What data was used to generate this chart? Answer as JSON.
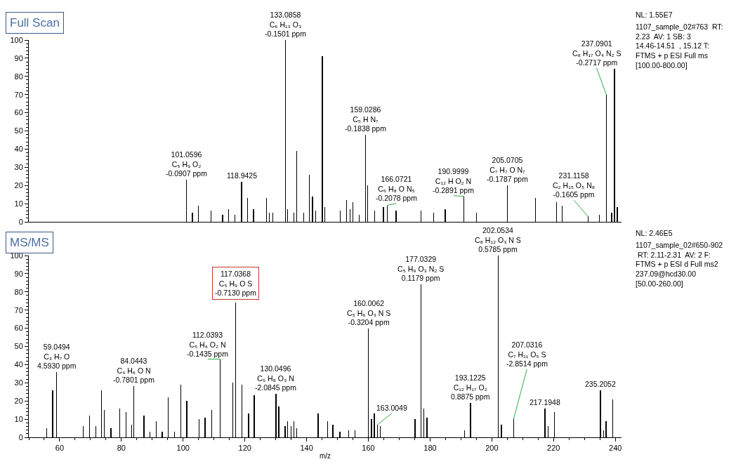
{
  "chart_data": [
    {
      "type": "bar",
      "title": "Full Scan",
      "color": "#000000",
      "x": [
        101.0596,
        103.0,
        104.9,
        109.0,
        112.8,
        114.7,
        116.8,
        118.9425,
        120.8,
        122.8,
        127.0,
        127.9,
        129.0,
        133.0858,
        133.9,
        135.8,
        136.8,
        139.0,
        140.9,
        141.9,
        143.0,
        145.1,
        145.9,
        150.9,
        153.0,
        154.0,
        155.0,
        157.0,
        159.0286,
        159.8,
        162.1,
        164.9,
        166.0721,
        169.0,
        177.0,
        181.1,
        184.9,
        190.9999,
        195.0,
        205.0705,
        214.1,
        221.0,
        222.8,
        231.1158,
        234.9,
        237.0901,
        238.8,
        239.7,
        240.6
      ],
      "values": [
        23,
        5,
        9,
        6,
        4,
        7,
        4,
        22,
        13,
        7,
        13,
        5,
        5,
        100,
        7,
        5,
        39,
        5,
        26,
        14,
        6,
        91,
        8,
        6,
        12,
        7,
        11,
        4,
        48,
        20,
        6,
        8,
        9,
        6,
        6,
        5,
        7,
        14,
        5,
        20,
        13,
        11,
        9,
        3,
        4,
        70,
        5,
        84,
        8
      ],
      "xlim": [
        50,
        242
      ],
      "xticks": [
        60,
        80,
        100,
        120,
        140,
        160,
        180,
        200,
        220,
        240
      ],
      "ylim": [
        0,
        100
      ],
      "yticks": [
        0,
        10,
        20,
        30,
        40,
        50,
        60,
        70,
        80,
        90,
        100
      ],
      "tick_labels": "y",
      "annotations": [
        {
          "text": "101.0596\nC₅ H₉ O₂\n-0.0907 ppm",
          "x": 101.0596,
          "y": 23
        },
        {
          "text": "118.9425",
          "x": 118.9425,
          "y": 22
        },
        {
          "text": "133.0858\nC₆ H₁₃ O₃\n-0.1501 ppm",
          "x": 133.0858,
          "y": 100
        },
        {
          "text": "159.0286\nC₅ H N₇\n-0.1838 ppm",
          "x": 159.0286,
          "y": 48
        },
        {
          "text": "166.0721\nC₆ H₈ O N₅\n-0.2078 ppm",
          "x": 166.0721,
          "y": 9
        },
        {
          "text": "190.9999\nC₁₂ H O₂ N\n-0.2891 ppm",
          "x": 190.9999,
          "y": 14
        },
        {
          "text": "205.0705\nC₇ H₇ O N₇\n-0.1787 ppm",
          "x": 205.0705,
          "y": 20
        },
        {
          "text": "231.1158\nC₂ H₁₅ O₅ N₈\n-0.1605 ppm",
          "x": 231.1158,
          "y": 3
        },
        {
          "text": "237.0901\nC₈ H₁₇ O₄ N₂ S\n-0.2717 ppm",
          "x": 237.0901,
          "y": 70
        },
        "NL: 1.55E7",
        "1107_sample_02#763  RT:\n2.23  AV: 1 SB: 3\n14.46-14.51  , 15.12 T:\nFTMS + p ESI Full ms\n[100.00-800.00]"
      ]
    },
    {
      "type": "bar",
      "title": "MS/MS",
      "xlabel": "m/z",
      "color": "#000000",
      "x": [
        55.8,
        57.7,
        59.0494,
        67.6,
        69.6,
        71.7,
        73.6,
        74.5,
        76.6,
        79.5,
        81.5,
        83.4,
        84.0443,
        87.3,
        89.3,
        91.3,
        93.2,
        95.2,
        97.2,
        99.2,
        101.2,
        105.1,
        107.1,
        109.3,
        112.0393,
        116.1,
        117.0368,
        119.0,
        121.2,
        123.0,
        130.0496,
        131.0,
        133.0,
        133.9,
        135.0,
        135.8,
        136.8,
        143.7,
        146.8,
        148.5,
        150.8,
        153.6,
        155.6,
        160.0062,
        161.0,
        161.9,
        163.0049,
        163.8,
        175.1,
        177.0329,
        177.9,
        179.0,
        191.1,
        193.1225,
        202.0534,
        203.1,
        207.0316,
        217.1948,
        218.2,
        220.2,
        235.2052,
        236.2,
        237.0,
        239.2
      ],
      "values": [
        5,
        26,
        36,
        6,
        12,
        6,
        26,
        15,
        5,
        16,
        14,
        7,
        28,
        12,
        3,
        9,
        3,
        22,
        3,
        29,
        20,
        10,
        11,
        15,
        43,
        30,
        74,
        29,
        13,
        23,
        24,
        17,
        6,
        9,
        6,
        9,
        5,
        13,
        9,
        7,
        3,
        4,
        4,
        60,
        10,
        13,
        7,
        6,
        10,
        84,
        16,
        11,
        4,
        19,
        100,
        7,
        10,
        16,
        6,
        14,
        26,
        4,
        9,
        21
      ],
      "xlim": [
        50,
        242
      ],
      "xticks": [
        60,
        80,
        100,
        120,
        140,
        160,
        180,
        200,
        220,
        240
      ],
      "ylim": [
        0,
        100
      ],
      "yticks": [
        0,
        10,
        20,
        30,
        40,
        50,
        60,
        70,
        80,
        90,
        100
      ],
      "annotations": [
        {
          "text": "59.0494\nC₃ H₇ O\n4.5930 ppm",
          "x": 59.0494,
          "y": 36
        },
        {
          "text": "84.0443\nC₄ H₆ O N\n-0.7801 ppm",
          "x": 84.0443,
          "y": 28
        },
        {
          "text": "112.0393\nC₅ H₆ O₂ N\n-0.1435 ppm",
          "x": 112.0393,
          "y": 43
        },
        {
          "text": "117.0368\nC₅ H₉ O S\n-0.7130 ppm",
          "x": 117.0368,
          "y": 74
        },
        {
          "text": "130.0496\nC₅ H₈ O₃ N\n-2.0845 ppm",
          "x": 130.0496,
          "y": 24
        },
        {
          "text": "160.0062\nC₅ H₆ O₃ N S\n-0.3204 ppm",
          "x": 160.0062,
          "y": 60
        },
        {
          "text": "163.0049",
          "x": 163.0049,
          "y": 7
        },
        {
          "text": "177.0329\nC₅ H₉ O₃ N₂ S\n0.1179 ppm",
          "x": 177.0329,
          "y": 84
        },
        {
          "text": "193.1225\nC₁₂ H₁₇ O₂\n0.8875 ppm",
          "x": 193.1225,
          "y": 19
        },
        {
          "text": "202.0534\nC₈ H₁₂ O₃ N S\n0.5785 ppm",
          "x": 202.0534,
          "y": 100
        },
        {
          "text": "207.0316\nC₇ H₁₁ O₅ S\n-2.8514 ppm",
          "x": 207.0316,
          "y": 10
        },
        {
          "text": "217.1948",
          "x": 217.1948,
          "y": 16
        },
        {
          "text": "235.2052",
          "x": 235.2052,
          "y": 26
        },
        "NL: 2.46E5",
        "1107_sample_02#650-902\n RT: 2.11-2.31  AV: 2 F:\nFTMS + p ESI d Full ms2\n237.09@hcd30.00\n[50.00-260.00]"
      ]
    }
  ]
}
